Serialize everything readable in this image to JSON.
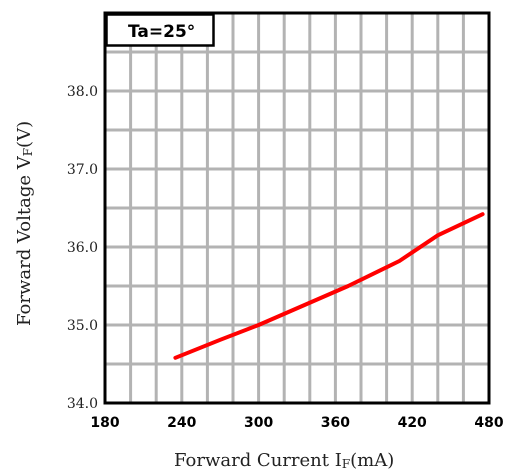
{
  "chart_data": {
    "type": "line",
    "xlabel": "Forward Current I",
    "xlabel_sub": "F",
    "xlabel_unit": "(mA)",
    "ylabel": "Forward Voltage V",
    "ylabel_sub": "F",
    "ylabel_unit": "(V)",
    "annotation": "Ta=25°",
    "xlim": [
      180,
      480
    ],
    "ylim": [
      34.0,
      39.0
    ],
    "x_ticks": [
      "180",
      "240",
      "300",
      "360",
      "420",
      "480"
    ],
    "x_tick_values": [
      180,
      240,
      300,
      360,
      420,
      480
    ],
    "y_ticks": [
      "34.0",
      "35.0",
      "36.0",
      "37.0",
      "38.0"
    ],
    "y_tick_values": [
      34.0,
      35.0,
      36.0,
      37.0,
      38.0
    ],
    "x_minor_step": 20,
    "y_minor_step": 0.5,
    "grid": true,
    "series": [
      {
        "color": "#ff0000",
        "x": [
          235,
          270,
          300,
          335,
          370,
          410,
          440,
          475
        ],
        "y": [
          34.58,
          34.81,
          35.0,
          35.25,
          35.5,
          35.82,
          36.15,
          36.42
        ]
      }
    ]
  }
}
